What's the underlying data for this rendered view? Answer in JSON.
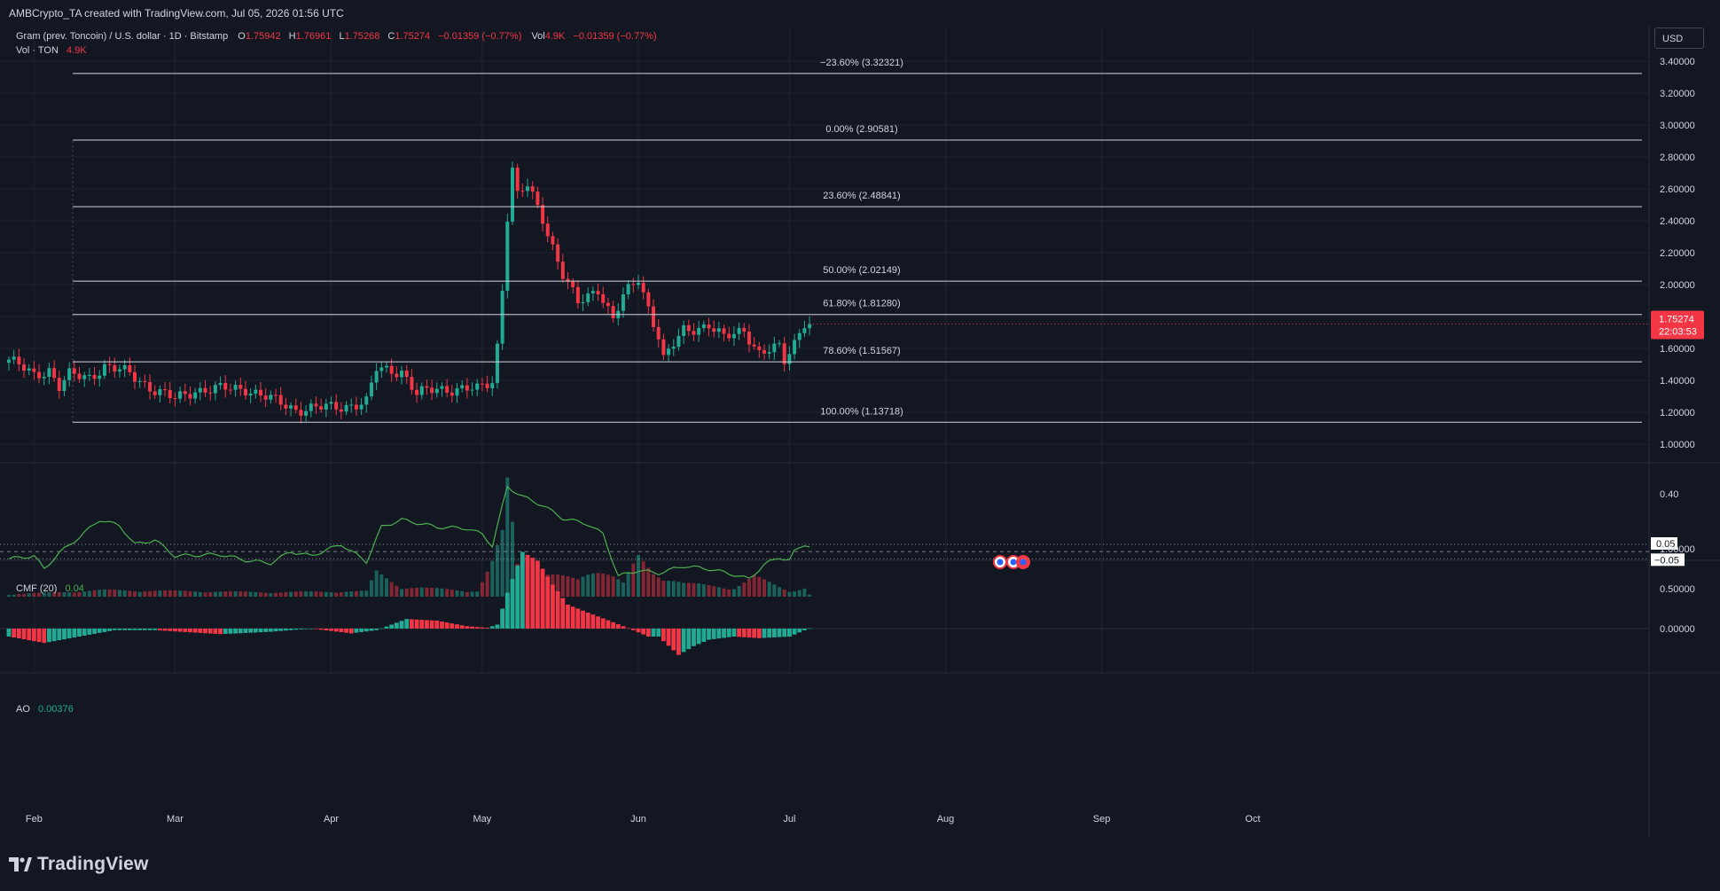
{
  "header": {
    "credit": "AMBCrypto_TA created with TradingView.com, Jul 05, 2026 01:56 UTC"
  },
  "legend": {
    "symbol": "Gram (prev. Toncoin) / U.S. dollar · 1D · Bitstamp",
    "o_label": "O",
    "o_value": "1.75942",
    "h_label": "H",
    "h_value": "1.76961",
    "l_label": "L",
    "l_value": "1.75268",
    "c_label": "C",
    "c_value": "1.75274",
    "change": "−0.01359 (−0.77%)",
    "vol_label": "Vol",
    "vol_value": "4.9K",
    "vol_change": "−0.01359 (−0.77%)",
    "vol_row_label": "Vol · TON",
    "vol_row_value": "4.9K"
  },
  "currency_button": "USD",
  "price_label": {
    "price": "1.75274",
    "countdown": "22:03:53"
  },
  "cmf_legend": {
    "name": "CMF (20)",
    "value": "0.04"
  },
  "ao_legend": {
    "name": "AO",
    "value": "0.00376"
  },
  "footer": {
    "brand": "TradingView"
  },
  "colors": {
    "background": "#131722",
    "up": "#22ab94",
    "down": "#f23645",
    "grid": "#1f2330",
    "fib": "#d1d4dc",
    "cmf": "#4caf50",
    "text": "#d1d4dc"
  },
  "chart_data": [
    {
      "type": "candlestick",
      "title": "Gram (prev. Toncoin) / U.S. dollar · 1D · Bitstamp",
      "x_axis_labels": [
        "Feb",
        "Mar",
        "Apr",
        "May",
        "Jun",
        "Jul",
        "Aug",
        "Sep",
        "Oct"
      ],
      "y_axis_labels": [
        "3.40000",
        "3.20000",
        "3.00000",
        "2.80000",
        "2.60000",
        "2.40000",
        "2.20000",
        "2.00000",
        "1.80000",
        "1.60000",
        "1.40000",
        "1.20000",
        "1.00000"
      ],
      "ylim": [
        0.82,
        3.45
      ],
      "fib_levels": [
        {
          "label": "−23.60% (3.32321)",
          "value": 3.32321
        },
        {
          "label": "0.00% (2.90581)",
          "value": 2.90581
        },
        {
          "label": "23.60% (2.48841)",
          "value": 2.48841
        },
        {
          "label": "50.00% (2.02149)",
          "value": 2.02149
        },
        {
          "label": "61.80% (1.81280)",
          "value": 1.8128
        },
        {
          "label": "78.60% (1.51567)",
          "value": 1.51567
        },
        {
          "label": "100.00% (1.13718)",
          "value": 1.13718
        }
      ],
      "close_anchors": [
        [
          "2026-01-27",
          1.53
        ],
        [
          "2026-02-01",
          1.43
        ],
        [
          "2026-02-04",
          1.47
        ],
        [
          "2026-02-06",
          1.36
        ],
        [
          "2026-02-08",
          1.43
        ],
        [
          "2026-02-12",
          1.42
        ],
        [
          "2026-02-15",
          1.49
        ],
        [
          "2026-02-20",
          1.44
        ],
        [
          "2026-02-25",
          1.34
        ],
        [
          "2026-03-01",
          1.28
        ],
        [
          "2026-03-05",
          1.34
        ],
        [
          "2026-03-15",
          1.35
        ],
        [
          "2026-03-20",
          1.28
        ],
        [
          "2026-03-25",
          1.22
        ],
        [
          "2026-04-01",
          1.23
        ],
        [
          "2026-04-08",
          1.26
        ],
        [
          "2026-04-10",
          1.47
        ],
        [
          "2026-04-15",
          1.46
        ],
        [
          "2026-04-18",
          1.31
        ],
        [
          "2026-04-22",
          1.35
        ],
        [
          "2026-04-30",
          1.34
        ],
        [
          "2026-05-03",
          1.4
        ],
        [
          "2026-05-04",
          1.62
        ],
        [
          "2026-05-05",
          1.98
        ],
        [
          "2026-05-06",
          2.43
        ],
        [
          "2026-05-07",
          2.72
        ],
        [
          "2026-05-08",
          2.55
        ],
        [
          "2026-05-10",
          2.62
        ],
        [
          "2026-05-13",
          2.42
        ],
        [
          "2026-05-17",
          2.06
        ],
        [
          "2026-05-20",
          1.88
        ],
        [
          "2026-05-24",
          1.98
        ],
        [
          "2026-05-27",
          1.78
        ],
        [
          "2026-05-29",
          1.92
        ],
        [
          "2026-06-01",
          2.04
        ],
        [
          "2026-06-03",
          1.86
        ],
        [
          "2026-06-05",
          1.68
        ],
        [
          "2026-06-06",
          1.53
        ],
        [
          "2026-06-10",
          1.71
        ],
        [
          "2026-06-15",
          1.75
        ],
        [
          "2026-06-18",
          1.66
        ],
        [
          "2026-06-22",
          1.72
        ],
        [
          "2026-06-25",
          1.57
        ],
        [
          "2026-06-29",
          1.6
        ],
        [
          "2026-06-30",
          1.52
        ],
        [
          "2026-07-02",
          1.64
        ],
        [
          "2026-07-03",
          1.71
        ],
        [
          "2026-07-04",
          1.77
        ],
        [
          "2026-07-05",
          1.75274
        ]
      ],
      "volume_anchors": [
        [
          "2026-01-27",
          0.02
        ],
        [
          "2026-02-15",
          0.06
        ],
        [
          "2026-03-20",
          0.04
        ],
        [
          "2026-04-08",
          0.05
        ],
        [
          "2026-04-10",
          0.22
        ],
        [
          "2026-04-15",
          0.09
        ],
        [
          "2026-04-30",
          0.05
        ],
        [
          "2026-05-03",
          0.3
        ],
        [
          "2026-05-05",
          0.55
        ],
        [
          "2026-05-06",
          1.0
        ],
        [
          "2026-05-08",
          0.3
        ],
        [
          "2026-05-12",
          0.22
        ],
        [
          "2026-05-20",
          0.15
        ],
        [
          "2026-05-24",
          0.28
        ],
        [
          "2026-05-29",
          0.12
        ],
        [
          "2026-06-01",
          0.35
        ],
        [
          "2026-06-04",
          0.22
        ],
        [
          "2026-06-10",
          0.12
        ],
        [
          "2026-06-20",
          0.08
        ],
        [
          "2026-06-24",
          0.18
        ],
        [
          "2026-07-01",
          0.05
        ],
        [
          "2026-07-04",
          0.08
        ],
        [
          "2026-07-05",
          0.02
        ]
      ]
    },
    {
      "type": "line",
      "title": "CMF (20)",
      "y_axis_labels": [
        "0.40",
        "0.05",
        "−0.05"
      ],
      "ylim": [
        -0.3,
        0.5
      ],
      "reference_lines": [
        0.05,
        0,
        -0.05
      ],
      "last_value": 0.04,
      "anchors": [
        [
          "2026-01-27",
          -0.05
        ],
        [
          "2026-02-01",
          -0.03
        ],
        [
          "2026-02-03",
          -0.12
        ],
        [
          "2026-02-06",
          -0.01
        ],
        [
          "2026-02-10",
          0.1
        ],
        [
          "2026-02-14",
          0.22
        ],
        [
          "2026-02-18",
          0.18
        ],
        [
          "2026-02-21",
          0.05
        ],
        [
          "2026-02-25",
          0.08
        ],
        [
          "2026-03-01",
          -0.03
        ],
        [
          "2026-03-10",
          -0.02
        ],
        [
          "2026-03-15",
          -0.06
        ],
        [
          "2026-03-20",
          -0.08
        ],
        [
          "2026-03-24",
          0.0
        ],
        [
          "2026-03-28",
          -0.03
        ],
        [
          "2026-04-03",
          0.05
        ],
        [
          "2026-04-08",
          -0.07
        ],
        [
          "2026-04-11",
          0.17
        ],
        [
          "2026-04-15",
          0.22
        ],
        [
          "2026-04-22",
          0.17
        ],
        [
          "2026-04-28",
          0.16
        ],
        [
          "2026-05-01",
          0.12
        ],
        [
          "2026-05-03",
          0.04
        ],
        [
          "2026-05-06",
          0.45
        ],
        [
          "2026-05-09",
          0.38
        ],
        [
          "2026-05-13",
          0.32
        ],
        [
          "2026-05-17",
          0.23
        ],
        [
          "2026-05-22",
          0.19
        ],
        [
          "2026-05-25",
          0.12
        ],
        [
          "2026-05-28",
          -0.17
        ],
        [
          "2026-06-01",
          -0.13
        ],
        [
          "2026-06-05",
          -0.15
        ],
        [
          "2026-06-10",
          -0.1
        ],
        [
          "2026-06-15",
          -0.12
        ],
        [
          "2026-06-20",
          -0.16
        ],
        [
          "2026-06-23",
          -0.19
        ],
        [
          "2026-06-26",
          -0.09
        ],
        [
          "2026-06-29",
          -0.04
        ],
        [
          "2026-07-01",
          -0.06
        ],
        [
          "2026-07-02",
          0.0
        ],
        [
          "2026-07-04",
          0.05
        ],
        [
          "2026-07-05",
          0.04
        ]
      ]
    },
    {
      "type": "bar",
      "title": "AO",
      "y_axis_labels": [
        "1.00000",
        "0.50000",
        "0.00000"
      ],
      "ylim": [
        -0.35,
        1.1
      ],
      "last_value": 0.00376,
      "anchors": [
        [
          "2026-01-27",
          -0.1
        ],
        [
          "2026-02-03",
          -0.18
        ],
        [
          "2026-02-10",
          -0.1
        ],
        [
          "2026-02-17",
          -0.02
        ],
        [
          "2026-02-25",
          -0.02
        ],
        [
          "2026-03-10",
          -0.07
        ],
        [
          "2026-03-20",
          -0.04
        ],
        [
          "2026-03-28",
          0.0
        ],
        [
          "2026-04-05",
          -0.06
        ],
        [
          "2026-04-10",
          -0.02
        ],
        [
          "2026-04-16",
          0.12
        ],
        [
          "2026-04-22",
          0.1
        ],
        [
          "2026-04-28",
          0.03
        ],
        [
          "2026-05-02",
          0.01
        ],
        [
          "2026-05-04",
          0.05
        ],
        [
          "2026-05-06",
          0.45
        ],
        [
          "2026-05-09",
          0.96
        ],
        [
          "2026-05-12",
          0.85
        ],
        [
          "2026-05-15",
          0.55
        ],
        [
          "2026-05-18",
          0.3
        ],
        [
          "2026-05-22",
          0.2
        ],
        [
          "2026-05-27",
          0.08
        ],
        [
          "2026-05-31",
          -0.02
        ],
        [
          "2026-06-03",
          -0.1
        ],
        [
          "2026-06-05",
          -0.1
        ],
        [
          "2026-06-09",
          -0.33
        ],
        [
          "2026-06-12",
          -0.22
        ],
        [
          "2026-06-15",
          -0.14
        ],
        [
          "2026-06-20",
          -0.1
        ],
        [
          "2026-06-25",
          -0.12
        ],
        [
          "2026-07-01",
          -0.1
        ],
        [
          "2026-07-05",
          0.00376
        ]
      ]
    }
  ]
}
